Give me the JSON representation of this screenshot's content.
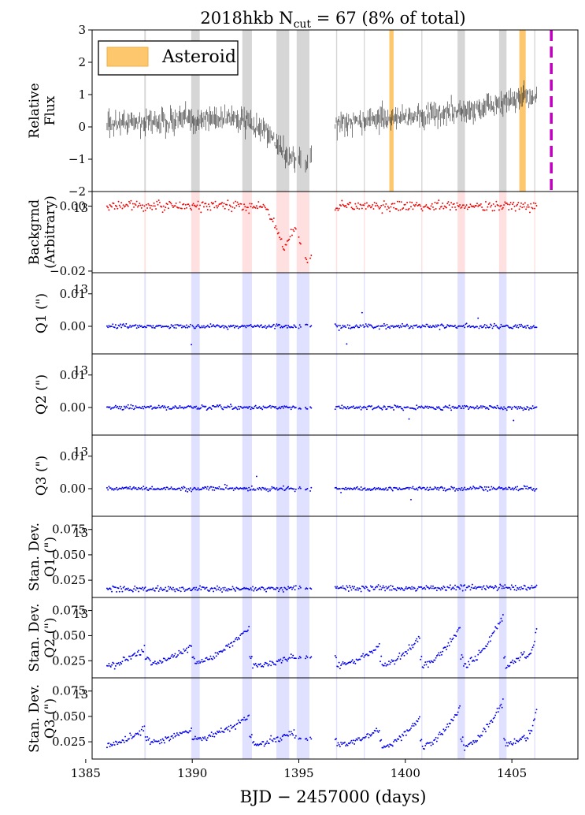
{
  "chart_data": {
    "type": "scatter",
    "title": "2018hkb  N",
    "title_sub": "cut",
    "title_rest": " = 67 (8% of total)",
    "xlabel": "BJD − 2457000 (days)",
    "xlim": [
      1385.3,
      1408.1
    ],
    "xticks": [
      1385,
      1390,
      1395,
      1400,
      1405
    ],
    "xtick_labels": [
      "1385",
      "1390",
      "1395",
      "1400",
      "1405"
    ],
    "legend": {
      "label": "Asteroid",
      "color": "#fdc76d",
      "placement": "top-left"
    },
    "discovery_line": {
      "x": 1406.85,
      "color": "#c000c0",
      "style": "dashed"
    },
    "data_gap": [
      1395.6,
      1396.7
    ],
    "asteroid_spans": [
      [
        1399.25,
        1399.45
      ],
      [
        1405.35,
        1405.65
      ]
    ],
    "gray_spans": [
      [
        1387.75,
        1387.82
      ],
      [
        1389.95,
        1390.35
      ],
      [
        1392.35,
        1392.8
      ],
      [
        1393.95,
        1394.55
      ],
      [
        1394.9,
        1395.5
      ],
      [
        1396.75,
        1396.8
      ],
      [
        1398.05,
        1398.1
      ],
      [
        1400.75,
        1400.8
      ],
      [
        1402.45,
        1402.8
      ],
      [
        1404.4,
        1404.75
      ],
      [
        1406.05,
        1406.1
      ]
    ],
    "panels": [
      {
        "key": "flux",
        "ylabel": [
          "Relative",
          "Flux"
        ],
        "ylim": [
          -2,
          3
        ],
        "yticks": [
          -2,
          -1,
          0,
          1,
          2,
          3
        ],
        "ytick_labels": [
          "−2",
          "−1",
          "0",
          "1",
          "2",
          "3"
        ],
        "offset": "",
        "color": "#222222",
        "style": "bars",
        "shade": "#bbbbbb"
      },
      {
        "key": "background",
        "ylabel": [
          "Backgrnd",
          "(Arbitrary)"
        ],
        "ylim": [
          -0.0205,
          0.0045
        ],
        "yticks": [
          0.0,
          -0.02
        ],
        "ytick_labels": [
          "0.00",
          "−0.02"
        ],
        "offset": "13",
        "color": "#ee0000",
        "style": "dots",
        "shade": "#ffcccc"
      },
      {
        "key": "q1",
        "ylabel": [
          "Q1 (\")"
        ],
        "ylim": [
          -0.0085,
          0.0165
        ],
        "yticks": [
          0.0,
          0.01
        ],
        "ytick_labels": [
          "0.00",
          "0.01"
        ],
        "offset": "13",
        "color": "#0000ee",
        "style": "dots",
        "shade": "#ccccff"
      },
      {
        "key": "q2",
        "ylabel": [
          "Q2 (\")"
        ],
        "ylim": [
          -0.0085,
          0.0165
        ],
        "yticks": [
          0.0,
          0.01
        ],
        "ytick_labels": [
          "0.00",
          "0.01"
        ],
        "offset": "13",
        "color": "#0000ee",
        "style": "dots",
        "shade": "#ccccff"
      },
      {
        "key": "q3",
        "ylabel": [
          "Q3 (\")"
        ],
        "ylim": [
          -0.0085,
          0.0165
        ],
        "yticks": [
          0.0,
          0.01
        ],
        "ytick_labels": [
          "0.00",
          "0.01"
        ],
        "offset": "13",
        "color": "#0000ee",
        "style": "dots",
        "shade": "#ccccff"
      },
      {
        "key": "sd1",
        "ylabel": [
          "Stan. Dev.",
          "Q1 (\")"
        ],
        "ylim": [
          0.008,
          0.088
        ],
        "yticks": [
          0.025,
          0.05,
          0.075
        ],
        "ytick_labels": [
          "0.025",
          "0.050",
          "0.075"
        ],
        "offset": "13",
        "color": "#0000ee",
        "style": "dots",
        "shade": "#ccccff"
      },
      {
        "key": "sd2",
        "ylabel": [
          "Stan. Dev.",
          "Q2 (\")"
        ],
        "ylim": [
          0.008,
          0.088
        ],
        "yticks": [
          0.025,
          0.05,
          0.075
        ],
        "ytick_labels": [
          "0.025",
          "0.050",
          "0.075"
        ],
        "offset": "13",
        "color": "#0000ee",
        "style": "dots",
        "shade": "#ccccff"
      },
      {
        "key": "sd3",
        "ylabel": [
          "Stan. Dev.",
          "Q3 (\")"
        ],
        "ylim": [
          0.008,
          0.088
        ],
        "yticks": [
          0.025,
          0.05,
          0.075
        ],
        "ytick_labels": [
          "0.025",
          "0.050",
          "0.075"
        ],
        "offset": "13",
        "color": "#0000ee",
        "style": "dots",
        "shade": "#ccccff"
      }
    ],
    "series_trend": {
      "flux": [
        [
          1386.0,
          0.1
        ],
        [
          1389.0,
          0.2
        ],
        [
          1392.0,
          0.3
        ],
        [
          1393.5,
          -0.2
        ],
        [
          1394.5,
          -0.9
        ],
        [
          1395.4,
          -1.1
        ],
        [
          1396.8,
          0.1
        ],
        [
          1400.0,
          0.3
        ],
        [
          1403.0,
          0.5
        ],
        [
          1405.0,
          0.8
        ],
        [
          1406.2,
          1.0
        ]
      ],
      "background": [
        [
          1386.0,
          0.0
        ],
        [
          1393.5,
          0.0
        ],
        [
          1394.3,
          -0.013
        ],
        [
          1394.8,
          -0.006
        ],
        [
          1395.4,
          -0.018
        ],
        [
          1396.8,
          0.0
        ],
        [
          1406.2,
          0.0
        ]
      ],
      "q1": [
        [
          1386.0,
          0.0
        ],
        [
          1406.2,
          0.0
        ]
      ],
      "q2": [
        [
          1386.0,
          0.0
        ],
        [
          1406.2,
          0.0
        ]
      ],
      "q3": [
        [
          1386.0,
          0.0
        ],
        [
          1406.2,
          0.0
        ]
      ],
      "sd1": [
        [
          1386.0,
          0.016
        ],
        [
          1406.2,
          0.018
        ]
      ],
      "sd2_segments": [
        [
          1386.0,
          1387.8,
          0.02,
          0.038
        ],
        [
          1388.0,
          1390.0,
          0.022,
          0.04
        ],
        [
          1390.1,
          1392.7,
          0.022,
          0.06
        ],
        [
          1392.8,
          1394.8,
          0.02,
          0.03
        ],
        [
          1396.8,
          1398.8,
          0.02,
          0.04
        ],
        [
          1398.9,
          1400.7,
          0.02,
          0.05
        ],
        [
          1400.8,
          1402.6,
          0.02,
          0.06
        ],
        [
          1402.7,
          1404.6,
          0.02,
          0.07
        ],
        [
          1404.7,
          1405.6,
          0.02,
          0.035
        ],
        [
          1405.8,
          1406.2,
          0.03,
          0.06
        ]
      ],
      "sd3_segments": [
        [
          1386.0,
          1387.8,
          0.022,
          0.038
        ],
        [
          1388.0,
          1390.0,
          0.025,
          0.038
        ],
        [
          1390.1,
          1392.7,
          0.028,
          0.05
        ],
        [
          1392.8,
          1394.8,
          0.022,
          0.035
        ],
        [
          1396.8,
          1398.8,
          0.022,
          0.038
        ],
        [
          1398.9,
          1400.7,
          0.02,
          0.05
        ],
        [
          1400.8,
          1402.6,
          0.02,
          0.06
        ],
        [
          1402.7,
          1404.6,
          0.02,
          0.065
        ],
        [
          1404.7,
          1405.6,
          0.022,
          0.03
        ],
        [
          1405.8,
          1406.2,
          0.035,
          0.06
        ]
      ]
    }
  }
}
